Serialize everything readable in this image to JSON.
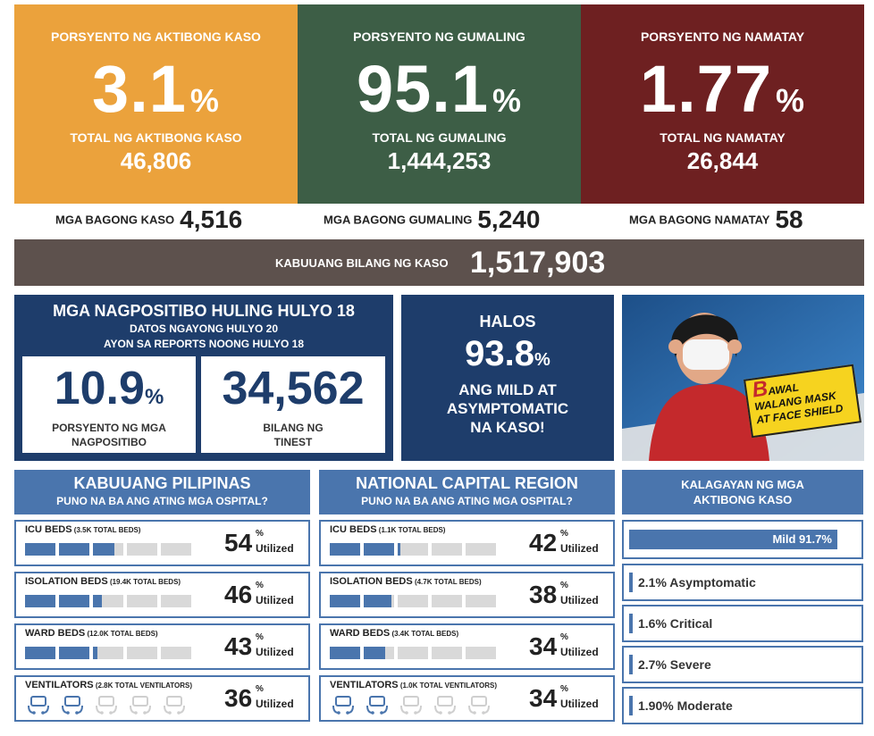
{
  "top_cards": [
    {
      "label": "PORSYENTO NG AKTIBONG KASO",
      "percent": "3.1",
      "pct_sign": "%",
      "total_label": "TOTAL NG AKTIBONG KASO",
      "total": "46,806",
      "color": "#eba23c"
    },
    {
      "label": "PORSYENTO NG GUMALING",
      "percent": "95.1",
      "pct_sign": "%",
      "total_label": "TOTAL NG GUMALING",
      "total": "1,444,253",
      "color": "#3d5e46"
    },
    {
      "label": "PORSYENTO NG NAMATAY",
      "percent": "1.77",
      "pct_sign": "%",
      "total_label": "TOTAL NG NAMATAY",
      "total": "26,844",
      "color": "#6e2021"
    }
  ],
  "new_cases": [
    {
      "label": "MGA BAGONG KASO",
      "value": "4,516"
    },
    {
      "label": "MGA BAGONG GUMALING",
      "value": "5,240"
    },
    {
      "label": "MGA BAGONG NAMATAY",
      "value": "58"
    }
  ],
  "total_cases": {
    "label": "KABUUANG BILANG NG KASO",
    "value": "1,517,903"
  },
  "positivity": {
    "title": "MGA NAGPOSITIBO HULING HULYO 18",
    "line1": "DATOS NGAYONG HULYO 20",
    "line2": "AYON SA REPORTS NOONG HULYO 18",
    "rate": "10.9",
    "rate_sign": "%",
    "rate_label1": "PORSYENTO NG MGA",
    "rate_label2": "NAGPOSITIBO",
    "tests": "34,562",
    "tests_label1": "BILANG NG",
    "tests_label2": "TINEST"
  },
  "mild": {
    "halos": "HALOS",
    "value": "93.8",
    "sign": "%",
    "l1": "ANG MILD AT",
    "l2": "ASYMPTOMATIC",
    "l3": "NA KASO!"
  },
  "mask_sign": {
    "line1": "AWAL",
    "big": "B",
    "line2": "WALANG MASK",
    "line3": "AT FACE SHIELD"
  },
  "ph_hospitals": {
    "title": "KABUUANG PILIPINAS",
    "subtitle": "PUNO NA BA ANG ATING MGA OSPITAL?",
    "rows": [
      {
        "label": "ICU BEDS",
        "detail": "(3.5K TOTAL BEDS)",
        "value": "54",
        "fill": 0.54
      },
      {
        "label": "ISOLATION BEDS",
        "detail": "(19.4K TOTAL BEDS)",
        "value": "46",
        "fill": 0.46
      },
      {
        "label": "WARD BEDS",
        "detail": "(12.0K TOTAL BEDS)",
        "value": "43",
        "fill": 0.43
      },
      {
        "label": "VENTILATORS",
        "detail": "(2.8K TOTAL VENTILATORS)",
        "value": "36",
        "fill": 0.36
      }
    ]
  },
  "ncr_hospitals": {
    "title": "NATIONAL CAPITAL REGION",
    "subtitle": "PUNO NA BA ANG ATING MGA OSPITAL?",
    "rows": [
      {
        "label": "ICU BEDS",
        "detail": "(1.1K TOTAL BEDS)",
        "value": "42",
        "fill": 0.42
      },
      {
        "label": "ISOLATION BEDS",
        "detail": "(4.7K TOTAL BEDS)",
        "value": "38",
        "fill": 0.38
      },
      {
        "label": "WARD BEDS",
        "detail": "(3.4K TOTAL BEDS)",
        "value": "34",
        "fill": 0.34
      },
      {
        "label": "VENTILATORS",
        "detail": "(1.0K TOTAL VENTILATORS)",
        "value": "34",
        "fill": 0.34
      }
    ]
  },
  "pct_sign": "%",
  "utilized": "Utilized",
  "status": {
    "title1": "KALAGAYAN NG MGA",
    "title2": "AKTIBONG KASO",
    "mild": "Mild 91.7%",
    "mild_fill": 0.917,
    "items": [
      "2.1% Asymptomatic",
      "1.6% Critical",
      "2.7% Severe",
      "1.90% Moderate"
    ]
  }
}
